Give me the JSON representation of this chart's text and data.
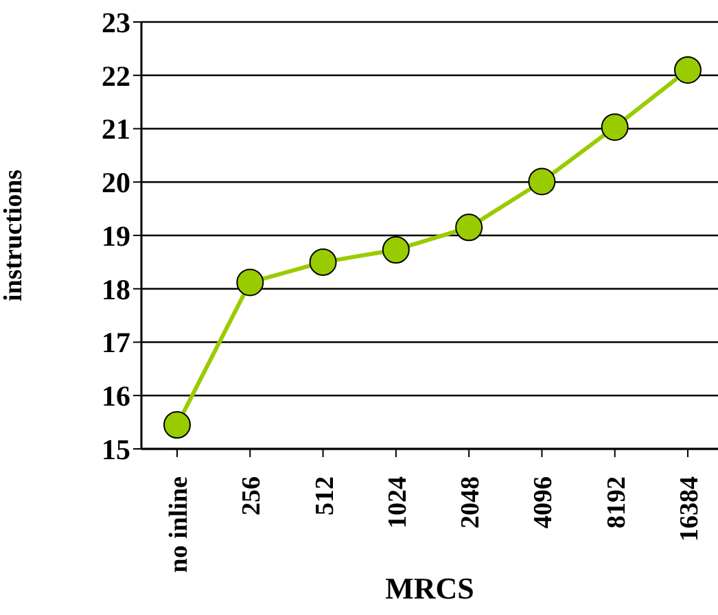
{
  "chart_data": {
    "type": "line",
    "xlabel": "MRCS",
    "ylabel": "instructions",
    "categories": [
      "no inline",
      "256",
      "512",
      "1024",
      "2048",
      "4096",
      "8192",
      "16384"
    ],
    "series": [
      {
        "color": "#99cc00",
        "values": [
          15.45,
          18.12,
          18.5,
          18.73,
          19.15,
          20.01,
          21.03,
          22.1
        ]
      }
    ],
    "ylim": [
      15,
      23
    ],
    "yticks": [
      15,
      16,
      17,
      18,
      19,
      20,
      21,
      22,
      23
    ],
    "grid": "y",
    "legend": false,
    "marker": "circle",
    "line_style": "solid"
  }
}
